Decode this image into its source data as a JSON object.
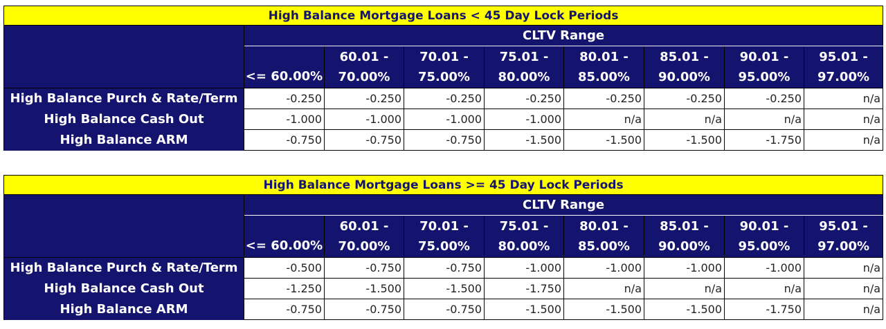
{
  "tables": [
    {
      "title": "High Balance Mortgage Loans < 45 Day Lock Periods",
      "group_header": "CLTV Range",
      "ranges": [
        {
          "line1": "",
          "line2": "<= 60.00%"
        },
        {
          "line1": "60.01 -",
          "line2": "70.00%"
        },
        {
          "line1": "70.01 -",
          "line2": "75.00%"
        },
        {
          "line1": "75.01 -",
          "line2": "80.00%"
        },
        {
          "line1": "80.01 -",
          "line2": "85.00%"
        },
        {
          "line1": "85.01 -",
          "line2": "90.00%"
        },
        {
          "line1": "90.01 -",
          "line2": "95.00%"
        },
        {
          "line1": "95.01 -",
          "line2": "97.00%"
        }
      ],
      "rows": [
        {
          "label": "High Balance Purch & Rate/Term",
          "values": [
            "-0.250",
            "-0.250",
            "-0.250",
            "-0.250",
            "-0.250",
            "-0.250",
            "-0.250",
            "n/a"
          ]
        },
        {
          "label": "High Balance Cash Out",
          "values": [
            "-1.000",
            "-1.000",
            "-1.000",
            "-1.000",
            "n/a",
            "n/a",
            "n/a",
            "n/a"
          ]
        },
        {
          "label": "High Balance ARM",
          "values": [
            "-0.750",
            "-0.750",
            "-0.750",
            "-1.500",
            "-1.500",
            "-1.500",
            "-1.750",
            "n/a"
          ]
        }
      ]
    },
    {
      "title": "High Balance Mortgage Loans >= 45 Day Lock Periods",
      "group_header": "CLTV Range",
      "ranges": [
        {
          "line1": "",
          "line2": "<= 60.00%"
        },
        {
          "line1": "60.01 -",
          "line2": "70.00%"
        },
        {
          "line1": "70.01 -",
          "line2": "75.00%"
        },
        {
          "line1": "75.01 -",
          "line2": "80.00%"
        },
        {
          "line1": "80.01 -",
          "line2": "85.00%"
        },
        {
          "line1": "85.01 -",
          "line2": "90.00%"
        },
        {
          "line1": "90.01 -",
          "line2": "95.00%"
        },
        {
          "line1": "95.01 -",
          "line2": "97.00%"
        }
      ],
      "rows": [
        {
          "label": "High Balance Purch & Rate/Term",
          "values": [
            "-0.500",
            "-0.750",
            "-0.750",
            "-1.000",
            "-1.000",
            "-1.000",
            "-1.000",
            "n/a"
          ]
        },
        {
          "label": "High Balance Cash Out",
          "values": [
            "-1.250",
            "-1.500",
            "-1.500",
            "-1.750",
            "n/a",
            "n/a",
            "n/a",
            "n/a"
          ]
        },
        {
          "label": "High Balance ARM",
          "values": [
            "-0.750",
            "-0.750",
            "-0.750",
            "-1.500",
            "-1.500",
            "-1.500",
            "-1.750",
            "n/a"
          ]
        }
      ]
    }
  ],
  "colors": {
    "title_bg": "#ffff00",
    "header_bg": "#14146e",
    "header_text": "#ffffff",
    "title_text": "#14146e"
  }
}
